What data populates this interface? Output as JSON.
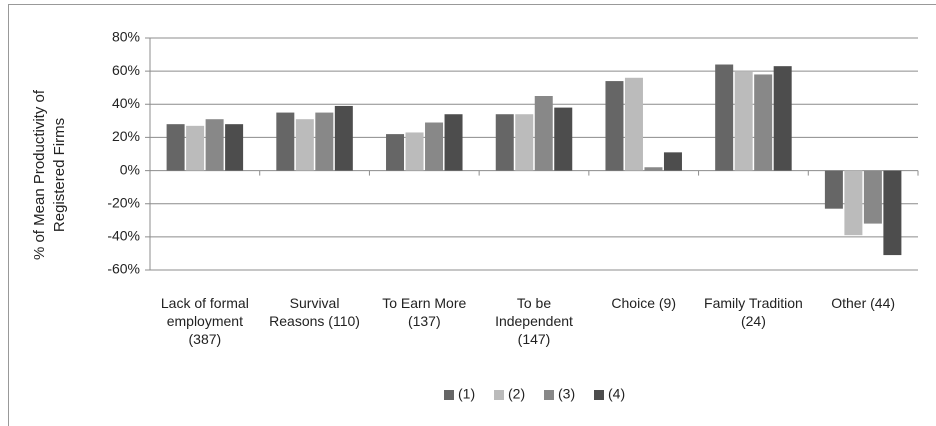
{
  "chart_data": {
    "type": "bar",
    "y_label": "% of Mean Productivity of Registered Firms",
    "categories": [
      "Lack of formal employment (387)",
      "Survival Reasons (110)",
      "To Earn More (137)",
      "To be Independent (147)",
      "Choice (9)",
      "Family Tradition (24)",
      "Other (44)"
    ],
    "series": [
      {
        "name": "(1)",
        "color": "#666666",
        "values": [
          28,
          35,
          22,
          34,
          54,
          64,
          -23
        ]
      },
      {
        "name": "(2)",
        "color": "#bbbbbb",
        "values": [
          27,
          31,
          23,
          34,
          56,
          60,
          -39
        ]
      },
      {
        "name": "(3)",
        "color": "#888888",
        "values": [
          31,
          35,
          29,
          45,
          2,
          58,
          -32
        ]
      },
      {
        "name": "(4)",
        "color": "#4d4d4d",
        "values": [
          28,
          39,
          34,
          38,
          11,
          63,
          -51
        ]
      }
    ],
    "ylim": [
      -60,
      80
    ],
    "yticks": [
      {
        "value": -60,
        "label": "-60%"
      },
      {
        "value": -40,
        "label": "-40%"
      },
      {
        "value": -20,
        "label": "-20%"
      },
      {
        "value": 0,
        "label": "0%"
      },
      {
        "value": 20,
        "label": "20%"
      },
      {
        "value": 40,
        "label": "40%"
      },
      {
        "value": 60,
        "label": "60%"
      },
      {
        "value": 80,
        "label": "80%"
      }
    ],
    "grid": true,
    "legend": "bottom"
  }
}
